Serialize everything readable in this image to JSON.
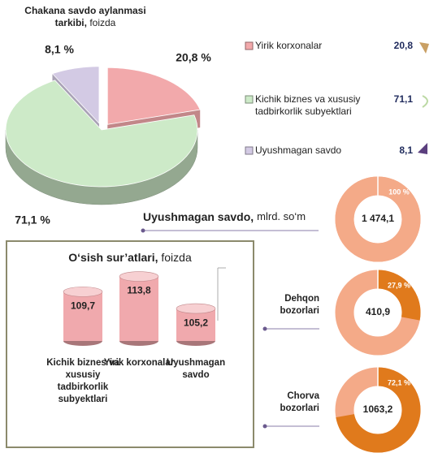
{
  "chart_data": [
    {
      "type": "pie3d",
      "title": "Chakana savdo aylanmasi tarkibi,",
      "subtitle": "foizda",
      "categories": [
        "Yirik korxonalar",
        "Kichik biznes va xususiy tadbirkorlik subyektlari",
        "Uyushmagan savdo"
      ],
      "values": [
        20.8,
        71.1,
        8.1
      ],
      "value_labels": [
        "20,8 %",
        "71,1 %",
        "8,1 %"
      ],
      "legend_value_labels": [
        "20,8",
        "71,1",
        "8,1"
      ],
      "colors": [
        "#f2a9ab",
        "#cdeac8",
        "#d3cae4"
      ]
    },
    {
      "type": "cylinder",
      "title": "O‘sish sur’atlari,",
      "subtitle": "foizda",
      "categories": [
        "Kichik biznes va xususiy tadbirkorlik subyektlari",
        "Yirik korxonalar",
        "Uyushmagan savdo"
      ],
      "values": [
        109.7,
        113.8,
        105.2
      ],
      "value_labels": [
        "109,7",
        "113,8",
        "105,2"
      ],
      "color": "#f0a9ad"
    },
    {
      "type": "donut",
      "title": "Uyushmagan savdo,",
      "subtitle": "mlrd. so‘m",
      "total": 1474.1,
      "total_label": "1 474,1",
      "values": [
        100
      ],
      "value_labels": [
        "100 %"
      ],
      "color": "#f4aa88",
      "track_color": "#f4aa88"
    },
    {
      "type": "donut",
      "category": "Dehqon bozorlari",
      "total": 410.9,
      "total_label": "410,9",
      "values": [
        27.9
      ],
      "value_labels": [
        "27,9 %"
      ],
      "color": "#e07a1c",
      "track_color": "#f4aa88"
    },
    {
      "type": "donut",
      "category": "Chorva bozorlari",
      "total": 1063.2,
      "total_label": "1063,2",
      "values": [
        72.1
      ],
      "value_labels": [
        "72,1 %"
      ],
      "color": "#e07a1c",
      "track_color": "#f4aa88"
    }
  ]
}
